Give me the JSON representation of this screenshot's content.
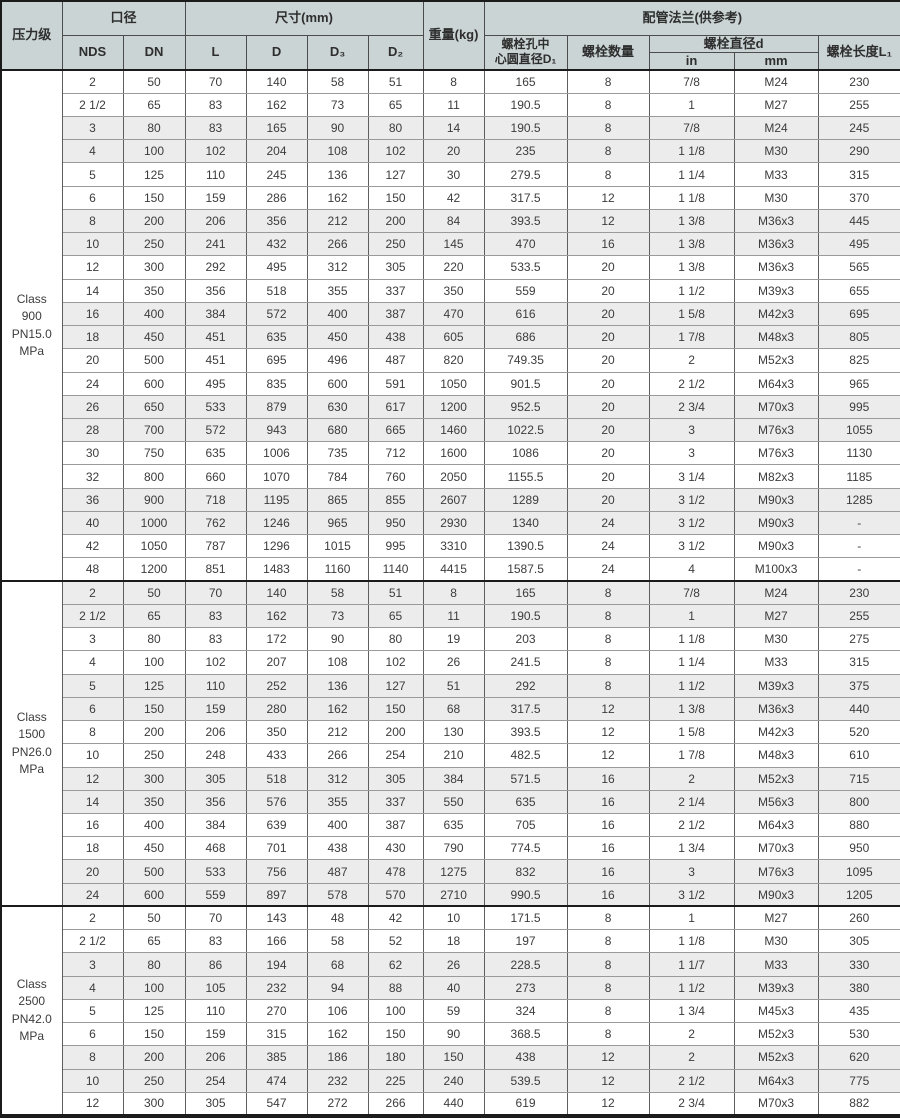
{
  "header": {
    "pressure_class": "压力级",
    "bore_group": "口径",
    "nds": "NDS",
    "dn": "DN",
    "dims_group": "尺寸(mm)",
    "l": "L",
    "d": "D",
    "d3": "D₃",
    "d2": "D₂",
    "weight": "重量(kg)",
    "flange_group": "配管法兰(供参考)",
    "bolt_circle": "螺栓孔中\n心圆直径D₁",
    "bolt_qty": "螺栓数量",
    "bolt_dia_group": "螺栓直径d",
    "unit_in": "in",
    "unit_mm": "mm",
    "bolt_len": "螺栓长度L₁"
  },
  "colors": {
    "header_bg": "#cbd4d5",
    "row_alt_bg": "#ececec",
    "row_bg": "#ffffff",
    "grid_line": "#9a9a9a",
    "grid_line_vertical": "#5e5e5e",
    "strong_border": "#1b1b1b",
    "text": "#3c3c3c"
  },
  "sections": [
    {
      "label": "Class\n900\nPN15.0\nMPa",
      "rows": [
        [
          "2",
          "50",
          "70",
          "140",
          "58",
          "51",
          "8",
          "165",
          "8",
          "7/8",
          "M24",
          "230"
        ],
        [
          "2 1/2",
          "65",
          "83",
          "162",
          "73",
          "65",
          "11",
          "190.5",
          "8",
          "1",
          "M27",
          "255"
        ],
        [
          "3",
          "80",
          "83",
          "165",
          "90",
          "80",
          "14",
          "190.5",
          "8",
          "7/8",
          "M24",
          "245"
        ],
        [
          "4",
          "100",
          "102",
          "204",
          "108",
          "102",
          "20",
          "235",
          "8",
          "1 1/8",
          "M30",
          "290"
        ],
        [
          "5",
          "125",
          "110",
          "245",
          "136",
          "127",
          "30",
          "279.5",
          "8",
          "1 1/4",
          "M33",
          "315"
        ],
        [
          "6",
          "150",
          "159",
          "286",
          "162",
          "150",
          "42",
          "317.5",
          "12",
          "1 1/8",
          "M30",
          "370"
        ],
        [
          "8",
          "200",
          "206",
          "356",
          "212",
          "200",
          "84",
          "393.5",
          "12",
          "1 3/8",
          "M36x3",
          "445"
        ],
        [
          "10",
          "250",
          "241",
          "432",
          "266",
          "250",
          "145",
          "470",
          "16",
          "1 3/8",
          "M36x3",
          "495"
        ],
        [
          "12",
          "300",
          "292",
          "495",
          "312",
          "305",
          "220",
          "533.5",
          "20",
          "1 3/8",
          "M36x3",
          "565"
        ],
        [
          "14",
          "350",
          "356",
          "518",
          "355",
          "337",
          "350",
          "559",
          "20",
          "1 1/2",
          "M39x3",
          "655"
        ],
        [
          "16",
          "400",
          "384",
          "572",
          "400",
          "387",
          "470",
          "616",
          "20",
          "1 5/8",
          "M42x3",
          "695"
        ],
        [
          "18",
          "450",
          "451",
          "635",
          "450",
          "438",
          "605",
          "686",
          "20",
          "1 7/8",
          "M48x3",
          "805"
        ],
        [
          "20",
          "500",
          "451",
          "695",
          "496",
          "487",
          "820",
          "749.35",
          "20",
          "2",
          "M52x3",
          "825"
        ],
        [
          "24",
          "600",
          "495",
          "835",
          "600",
          "591",
          "1050",
          "901.5",
          "20",
          "2 1/2",
          "M64x3",
          "965"
        ],
        [
          "26",
          "650",
          "533",
          "879",
          "630",
          "617",
          "1200",
          "952.5",
          "20",
          "2 3/4",
          "M70x3",
          "995"
        ],
        [
          "28",
          "700",
          "572",
          "943",
          "680",
          "665",
          "1460",
          "1022.5",
          "20",
          "3",
          "M76x3",
          "1055"
        ],
        [
          "30",
          "750",
          "635",
          "1006",
          "735",
          "712",
          "1600",
          "1086",
          "20",
          "3",
          "M76x3",
          "1130"
        ],
        [
          "32",
          "800",
          "660",
          "1070",
          "784",
          "760",
          "2050",
          "1155.5",
          "20",
          "3 1/4",
          "M82x3",
          "1185"
        ],
        [
          "36",
          "900",
          "718",
          "1195",
          "865",
          "855",
          "2607",
          "1289",
          "20",
          "3 1/2",
          "M90x3",
          "1285"
        ],
        [
          "40",
          "1000",
          "762",
          "1246",
          "965",
          "950",
          "2930",
          "1340",
          "24",
          "3 1/2",
          "M90x3",
          "-"
        ],
        [
          "42",
          "1050",
          "787",
          "1296",
          "1015",
          "995",
          "3310",
          "1390.5",
          "24",
          "3 1/2",
          "M90x3",
          "-"
        ],
        [
          "48",
          "1200",
          "851",
          "1483",
          "1160",
          "1140",
          "4415",
          "1587.5",
          "24",
          "4",
          "M100x3",
          "-"
        ]
      ]
    },
    {
      "label": "Class\n1500\nPN26.0\nMPa",
      "rows": [
        [
          "2",
          "50",
          "70",
          "140",
          "58",
          "51",
          "8",
          "165",
          "8",
          "7/8",
          "M24",
          "230"
        ],
        [
          "2 1/2",
          "65",
          "83",
          "162",
          "73",
          "65",
          "11",
          "190.5",
          "8",
          "1",
          "M27",
          "255"
        ],
        [
          "3",
          "80",
          "83",
          "172",
          "90",
          "80",
          "19",
          "203",
          "8",
          "1 1/8",
          "M30",
          "275"
        ],
        [
          "4",
          "100",
          "102",
          "207",
          "108",
          "102",
          "26",
          "241.5",
          "8",
          "1 1/4",
          "M33",
          "315"
        ],
        [
          "5",
          "125",
          "110",
          "252",
          "136",
          "127",
          "51",
          "292",
          "8",
          "1 1/2",
          "M39x3",
          "375"
        ],
        [
          "6",
          "150",
          "159",
          "280",
          "162",
          "150",
          "68",
          "317.5",
          "12",
          "1 3/8",
          "M36x3",
          "440"
        ],
        [
          "8",
          "200",
          "206",
          "350",
          "212",
          "200",
          "130",
          "393.5",
          "12",
          "1 5/8",
          "M42x3",
          "520"
        ],
        [
          "10",
          "250",
          "248",
          "433",
          "266",
          "254",
          "210",
          "482.5",
          "12",
          "1 7/8",
          "M48x3",
          "610"
        ],
        [
          "12",
          "300",
          "305",
          "518",
          "312",
          "305",
          "384",
          "571.5",
          "16",
          "2",
          "M52x3",
          "715"
        ],
        [
          "14",
          "350",
          "356",
          "576",
          "355",
          "337",
          "550",
          "635",
          "16",
          "2 1/4",
          "M56x3",
          "800"
        ],
        [
          "16",
          "400",
          "384",
          "639",
          "400",
          "387",
          "635",
          "705",
          "16",
          "2 1/2",
          "M64x3",
          "880"
        ],
        [
          "18",
          "450",
          "468",
          "701",
          "438",
          "430",
          "790",
          "774.5",
          "16",
          "1 3/4",
          "M70x3",
          "950"
        ],
        [
          "20",
          "500",
          "533",
          "756",
          "487",
          "478",
          "1275",
          "832",
          "16",
          "3",
          "M76x3",
          "1095"
        ],
        [
          "24",
          "600",
          "559",
          "897",
          "578",
          "570",
          "2710",
          "990.5",
          "16",
          "3 1/2",
          "M90x3",
          "1205"
        ]
      ]
    },
    {
      "label": "Class\n2500\nPN42.0\nMPa",
      "rows": [
        [
          "2",
          "50",
          "70",
          "143",
          "48",
          "42",
          "10",
          "171.5",
          "8",
          "1",
          "M27",
          "260"
        ],
        [
          "2 1/2",
          "65",
          "83",
          "166",
          "58",
          "52",
          "18",
          "197",
          "8",
          "1 1/8",
          "M30",
          "305"
        ],
        [
          "3",
          "80",
          "86",
          "194",
          "68",
          "62",
          "26",
          "228.5",
          "8",
          "1 1/7",
          "M33",
          "330"
        ],
        [
          "4",
          "100",
          "105",
          "232",
          "94",
          "88",
          "40",
          "273",
          "8",
          "1 1/2",
          "M39x3",
          "380"
        ],
        [
          "5",
          "125",
          "110",
          "270",
          "106",
          "100",
          "59",
          "324",
          "8",
          "1 3/4",
          "M45x3",
          "435"
        ],
        [
          "6",
          "150",
          "159",
          "315",
          "162",
          "150",
          "90",
          "368.5",
          "8",
          "2",
          "M52x3",
          "530"
        ],
        [
          "8",
          "200",
          "206",
          "385",
          "186",
          "180",
          "150",
          "438",
          "12",
          "2",
          "M52x3",
          "620"
        ],
        [
          "10",
          "250",
          "254",
          "474",
          "232",
          "225",
          "240",
          "539.5",
          "12",
          "2 1/2",
          "M64x3",
          "775"
        ],
        [
          "12",
          "300",
          "305",
          "547",
          "272",
          "266",
          "440",
          "619",
          "12",
          "2 3/4",
          "M70x3",
          "882"
        ]
      ]
    }
  ]
}
